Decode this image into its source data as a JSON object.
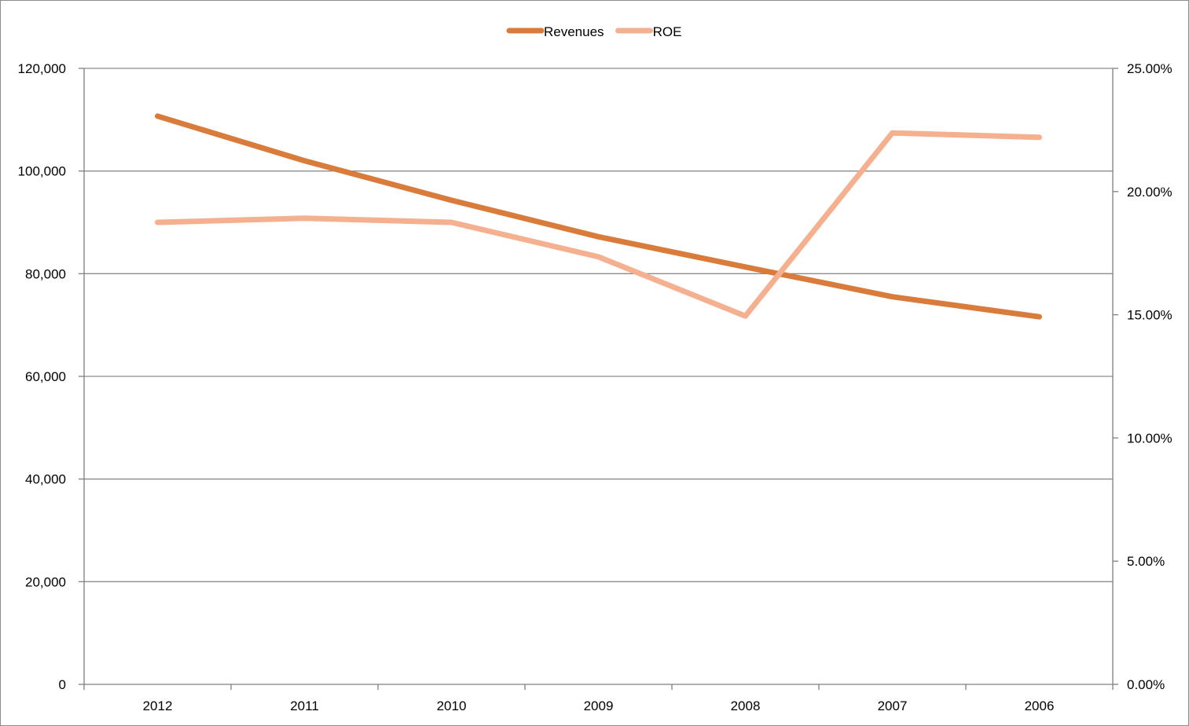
{
  "chart_data": {
    "type": "line",
    "title": "",
    "xlabel": "",
    "ylabel": "",
    "categories": [
      "2012",
      "2011",
      "2010",
      "2009",
      "2008",
      "2007",
      "2006"
    ],
    "series": [
      {
        "name": "Revenues",
        "axis": "left",
        "color": "#d97c3b",
        "values": [
          110700,
          102000,
          94300,
          87200,
          81300,
          75500,
          71600
        ]
      },
      {
        "name": "ROE",
        "axis": "right",
        "color": "#f4b08f",
        "values": [
          0.1875,
          0.1892,
          0.1875,
          0.1735,
          0.1495,
          0.2238,
          0.222
        ]
      }
    ],
    "y_left": {
      "ylim": [
        0,
        120000
      ],
      "ticks": [
        0,
        20000,
        40000,
        60000,
        80000,
        100000,
        120000
      ],
      "tick_labels": [
        "0",
        "20,000",
        "40,000",
        "60,000",
        "80,000",
        "100,000",
        "120,000"
      ]
    },
    "y_right": {
      "ylim": [
        0,
        0.25
      ],
      "ticks": [
        0,
        0.05,
        0.1,
        0.15,
        0.2,
        0.25
      ],
      "tick_labels": [
        "0.00%",
        "5.00%",
        "10.00%",
        "15.00%",
        "20.00%",
        "25.00%"
      ]
    },
    "grid": true,
    "legend": "top-center",
    "axis_color": "#808080",
    "grid_color": "#8c8c8c"
  }
}
